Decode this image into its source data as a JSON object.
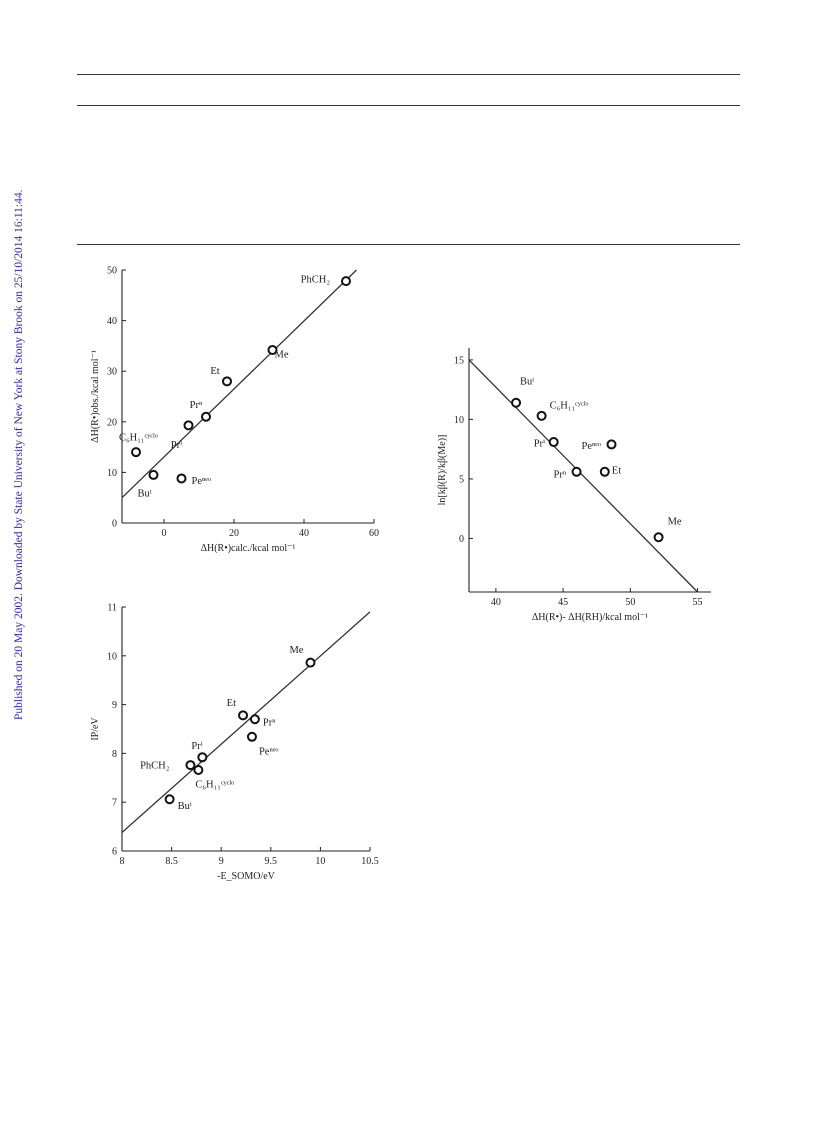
{
  "watermark": "Published on 20 May 2002. Downloaded by State University of New York at Stony Brook on 25/10/2014 16:11:44.",
  "chart_data": [
    {
      "type": "scatter",
      "xlim": [
        -12,
        60
      ],
      "ylim": [
        0,
        50
      ],
      "xticks": [
        "0",
        "20",
        "40",
        "60"
      ],
      "yticks": [
        "0",
        "10",
        "20",
        "30",
        "40",
        "50"
      ],
      "xlabel": "ΔH(R•)calc./kcal mol⁻¹",
      "ylabel": "ΔH(R•)obs./kcal mol⁻¹",
      "fit_line": {
        "x": [
          -12,
          55
        ],
        "y": [
          5,
          50
        ]
      },
      "points": [
        {
          "x": 52,
          "y": 47.8,
          "label": "PhCH₂"
        },
        {
          "x": 31,
          "y": 34.2,
          "label": "Me"
        },
        {
          "x": 18,
          "y": 28,
          "label": "Et"
        },
        {
          "x": 12,
          "y": 21,
          "label": "Prⁿ"
        },
        {
          "x": 7,
          "y": 19.3,
          "label": "Prⁱ"
        },
        {
          "x": -8,
          "y": 14,
          "label": "C₆H₁₁ᶜʸᶜˡᵒ"
        },
        {
          "x": -3,
          "y": 9.5,
          "label": "Buᵗ"
        },
        {
          "x": 5,
          "y": 8.8,
          "label": "Peⁿᵉᵒ"
        }
      ]
    },
    {
      "type": "scatter",
      "xlim": [
        38,
        56
      ],
      "ylim": [
        -4.5,
        16
      ],
      "xticks": [
        "40",
        "45",
        "50",
        "55"
      ],
      "yticks": [
        "0",
        "5",
        "10",
        "15"
      ],
      "xlabel": "ΔH(R•)- ΔH(RH)/kcal mol⁻¹",
      "ylabel": "ln[kβ(R)/kβ(Me)]",
      "fit_line": {
        "x": [
          38,
          55
        ],
        "y": [
          15,
          -4.5
        ]
      },
      "points": [
        {
          "x": 41.5,
          "y": 11.4,
          "label": "Buᵗ"
        },
        {
          "x": 43.4,
          "y": 10.3,
          "label": "C₆H₁₁ᶜʸᶜˡᵒ"
        },
        {
          "x": 44.3,
          "y": 8.1,
          "label": "Prⁱ"
        },
        {
          "x": 48.6,
          "y": 7.9,
          "label": "Peⁿᵉᵒ"
        },
        {
          "x": 46,
          "y": 5.6,
          "label": "Prⁿ"
        },
        {
          "x": 48.1,
          "y": 5.6,
          "label": "Et"
        },
        {
          "x": 52.1,
          "y": 0.1,
          "label": "Me"
        }
      ]
    },
    {
      "type": "scatter",
      "xlim": [
        8,
        10.5
      ],
      "ylim": [
        6,
        11
      ],
      "xticks": [
        "8",
        "8.5",
        "9",
        "9.5",
        "10",
        "10.5"
      ],
      "yticks": [
        "6",
        "7",
        "8",
        "9",
        "10",
        "11"
      ],
      "xlabel": "-E_SOMO/eV",
      "ylabel": "IP/eV",
      "fit_line": {
        "x": [
          8,
          10.5
        ],
        "y": [
          6.38,
          10.9
        ]
      },
      "points": [
        {
          "x": 9.9,
          "y": 9.86,
          "label": "Me"
        },
        {
          "x": 9.22,
          "y": 8.78,
          "label": "Et"
        },
        {
          "x": 9.34,
          "y": 8.7,
          "label": "Prⁿ"
        },
        {
          "x": 9.31,
          "y": 8.34,
          "label": "Peⁿᵉᵒ"
        },
        {
          "x": 8.81,
          "y": 7.92,
          "label": "Prⁱ"
        },
        {
          "x": 8.69,
          "y": 7.76,
          "label": "PhCH₂"
        },
        {
          "x": 8.77,
          "y": 7.66,
          "label": "C₆H₁₁ᶜʸᶜˡᵒ"
        },
        {
          "x": 8.48,
          "y": 7.06,
          "label": "Buᵗ"
        }
      ]
    }
  ]
}
